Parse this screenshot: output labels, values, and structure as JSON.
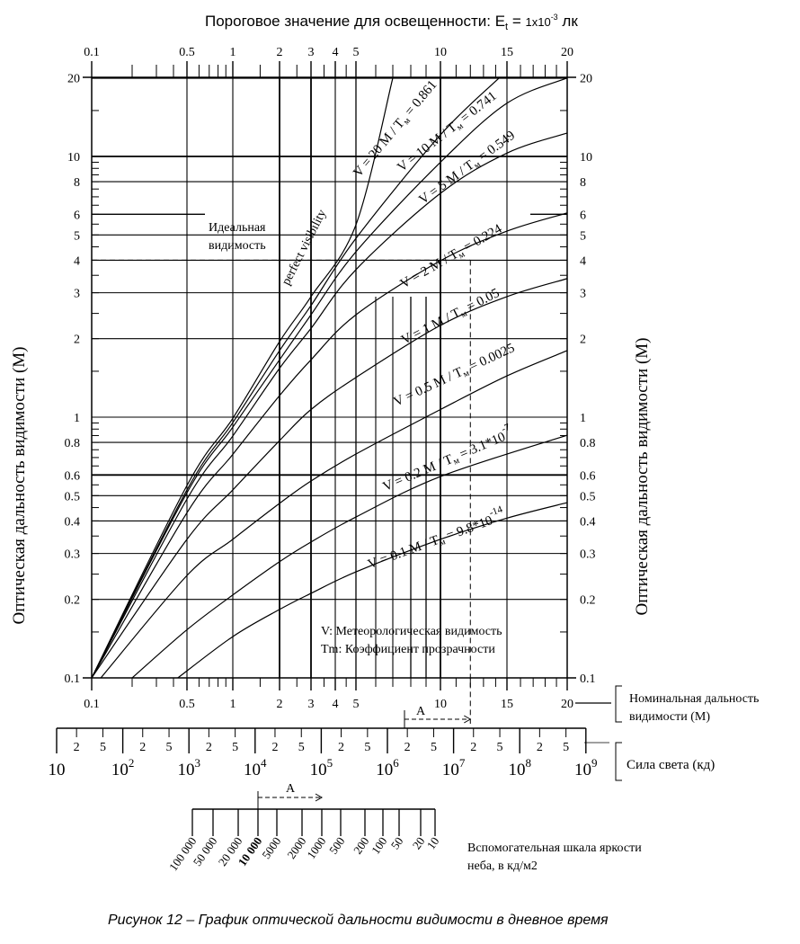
{
  "header": {
    "title_prefix": "Пороговое значение для освещенности: ",
    "title_symbol": "E",
    "title_symbol_sub": "t",
    "title_eq": " = ",
    "title_value": "1x10",
    "title_exp": "-3",
    "title_unit": " лк"
  },
  "caption": "Рисунок 12 – График оптической дальности видимости в дневное время",
  "chart_data": {
    "type": "line",
    "title": "",
    "ylabel": "Оптическая дальность видимости (М)",
    "xlabel": "Номинальная дальность видимости (М)",
    "x_scale": "nonlinear nomogram",
    "y_scale": "log",
    "xlim": [
      0.1,
      20
    ],
    "ylim": [
      0.1,
      20
    ],
    "grid": true,
    "x_tick_labels": [
      "0.1",
      "0.5",
      "1",
      "2",
      "3",
      "4",
      "5",
      "10",
      "15",
      "20"
    ],
    "y_tick_labels": [
      "20",
      "10",
      "8",
      "6",
      "5",
      "4",
      "3",
      "2",
      "1",
      "0.8",
      "0.6",
      "0.5",
      "0.4",
      "0.3",
      "0.2",
      "0.1"
    ],
    "perfect_visibility": {
      "label": "perfect visibility",
      "label_ru_line1": "Идеальная",
      "label_ru_line2": "видимость",
      "x": [
        0.1,
        0.5,
        1,
        2,
        3,
        5,
        7
      ],
      "y": [
        0.1,
        0.547,
        0.99,
        1.95,
        2.9,
        5.47,
        20
      ]
    },
    "series": [
      {
        "name_main": "V = 20 M / T",
        "name_sub": "м",
        "name_val": " = 0.861",
        "name_exp": "",
        "x": [
          0.1,
          0.5,
          1,
          2,
          3,
          5,
          10,
          14.3
        ],
        "y": [
          0.1,
          0.526,
          0.953,
          1.8,
          2.68,
          4.85,
          12.1,
          20
        ]
      },
      {
        "name_main": "V = 10 M / T",
        "name_sub": "м",
        "name_val": " = 0.741",
        "name_exp": "",
        "x": [
          0.1,
          0.5,
          1,
          2,
          3,
          5,
          10,
          15,
          20
        ],
        "y": [
          0.1,
          0.513,
          0.916,
          1.66,
          2.47,
          4.31,
          9.5,
          16,
          20
        ]
      },
      {
        "name_main": "V = 5 M / T",
        "name_sub": "м",
        "name_val": " = 0.549",
        "name_exp": "",
        "x": [
          0.1,
          0.5,
          1,
          2,
          3,
          5,
          10,
          15,
          20
        ],
        "y": [
          0.1,
          0.485,
          0.847,
          1.54,
          2.19,
          3.68,
          7.22,
          10.3,
          12.3
        ]
      },
      {
        "name_main": "V = 2 M / T",
        "name_sub": "м",
        "name_val": " = 0.224",
        "name_exp": "",
        "x": [
          0.1,
          0.5,
          1,
          2,
          3,
          5,
          10,
          15,
          20
        ],
        "y": [
          0.1,
          0.43,
          0.72,
          1.21,
          1.66,
          2.47,
          3.98,
          5.17,
          6.07
        ]
      },
      {
        "name_main": "V = 1 M / T",
        "name_sub": "м",
        "name_val": " = 0.05",
        "name_exp": "",
        "x": [
          0.1,
          0.5,
          1,
          2,
          3,
          5,
          10,
          15,
          20
        ],
        "y": [
          0.1,
          0.34,
          0.526,
          0.813,
          1.07,
          1.42,
          2.25,
          2.9,
          3.4
        ]
      },
      {
        "name_main": "V = 0.5 M / T",
        "name_sub": "м",
        "name_val": " = 0.0025",
        "name_exp": "",
        "x": [
          0.117,
          0.5,
          1,
          2,
          3,
          5,
          10,
          15,
          20
        ],
        "y": [
          0.1,
          0.247,
          0.34,
          0.467,
          0.569,
          0.722,
          1.07,
          1.44,
          1.8
        ]
      },
      {
        "name_main": "V = 0.2 M / T",
        "name_sub": "м",
        "name_val": " = 3.1*10",
        "name_exp": "-7",
        "x": [
          0.2,
          0.5,
          1,
          2,
          3,
          5,
          10,
          20
        ],
        "y": [
          0.1,
          0.153,
          0.208,
          0.279,
          0.332,
          0.414,
          0.592,
          0.853
        ]
      },
      {
        "name_main": "V = 0.1 M / T",
        "name_sub": "м",
        "name_val": " = 9.8*10",
        "name_exp": "-14",
        "x": [
          0.43,
          1,
          2,
          3,
          5,
          10,
          15,
          20
        ],
        "y": [
          0.1,
          0.144,
          0.183,
          0.211,
          0.255,
          0.34,
          0.41,
          0.47
        ]
      }
    ],
    "example": {
      "x": 12,
      "y": 4,
      "arrow_label": "A"
    },
    "legend_line1": "V: Метеорологическая видимость",
    "legend_line2": "Tm: Коэффициент прозрачности"
  },
  "luminous_intensity_scale": {
    "label": "Сила света (кд)",
    "decade_base": "10",
    "decade_exponents": [
      "",
      "2",
      "3",
      "4",
      "5",
      "6",
      "7",
      "8",
      "9"
    ],
    "minor_labels": [
      "2",
      "5"
    ],
    "arrow_label": "A"
  },
  "sky_luminance_scale": {
    "label_line1": "Вспомогательная шкала яркости",
    "label_line2": "неба, в кд/м2",
    "tick_labels": [
      "100 000",
      "50 000",
      "20 000",
      "10 000",
      "5000",
      "2000",
      "1000",
      "500",
      "200",
      "100",
      "50",
      "20",
      "10"
    ],
    "highlighted": "10 000",
    "arrow_label": "A"
  }
}
